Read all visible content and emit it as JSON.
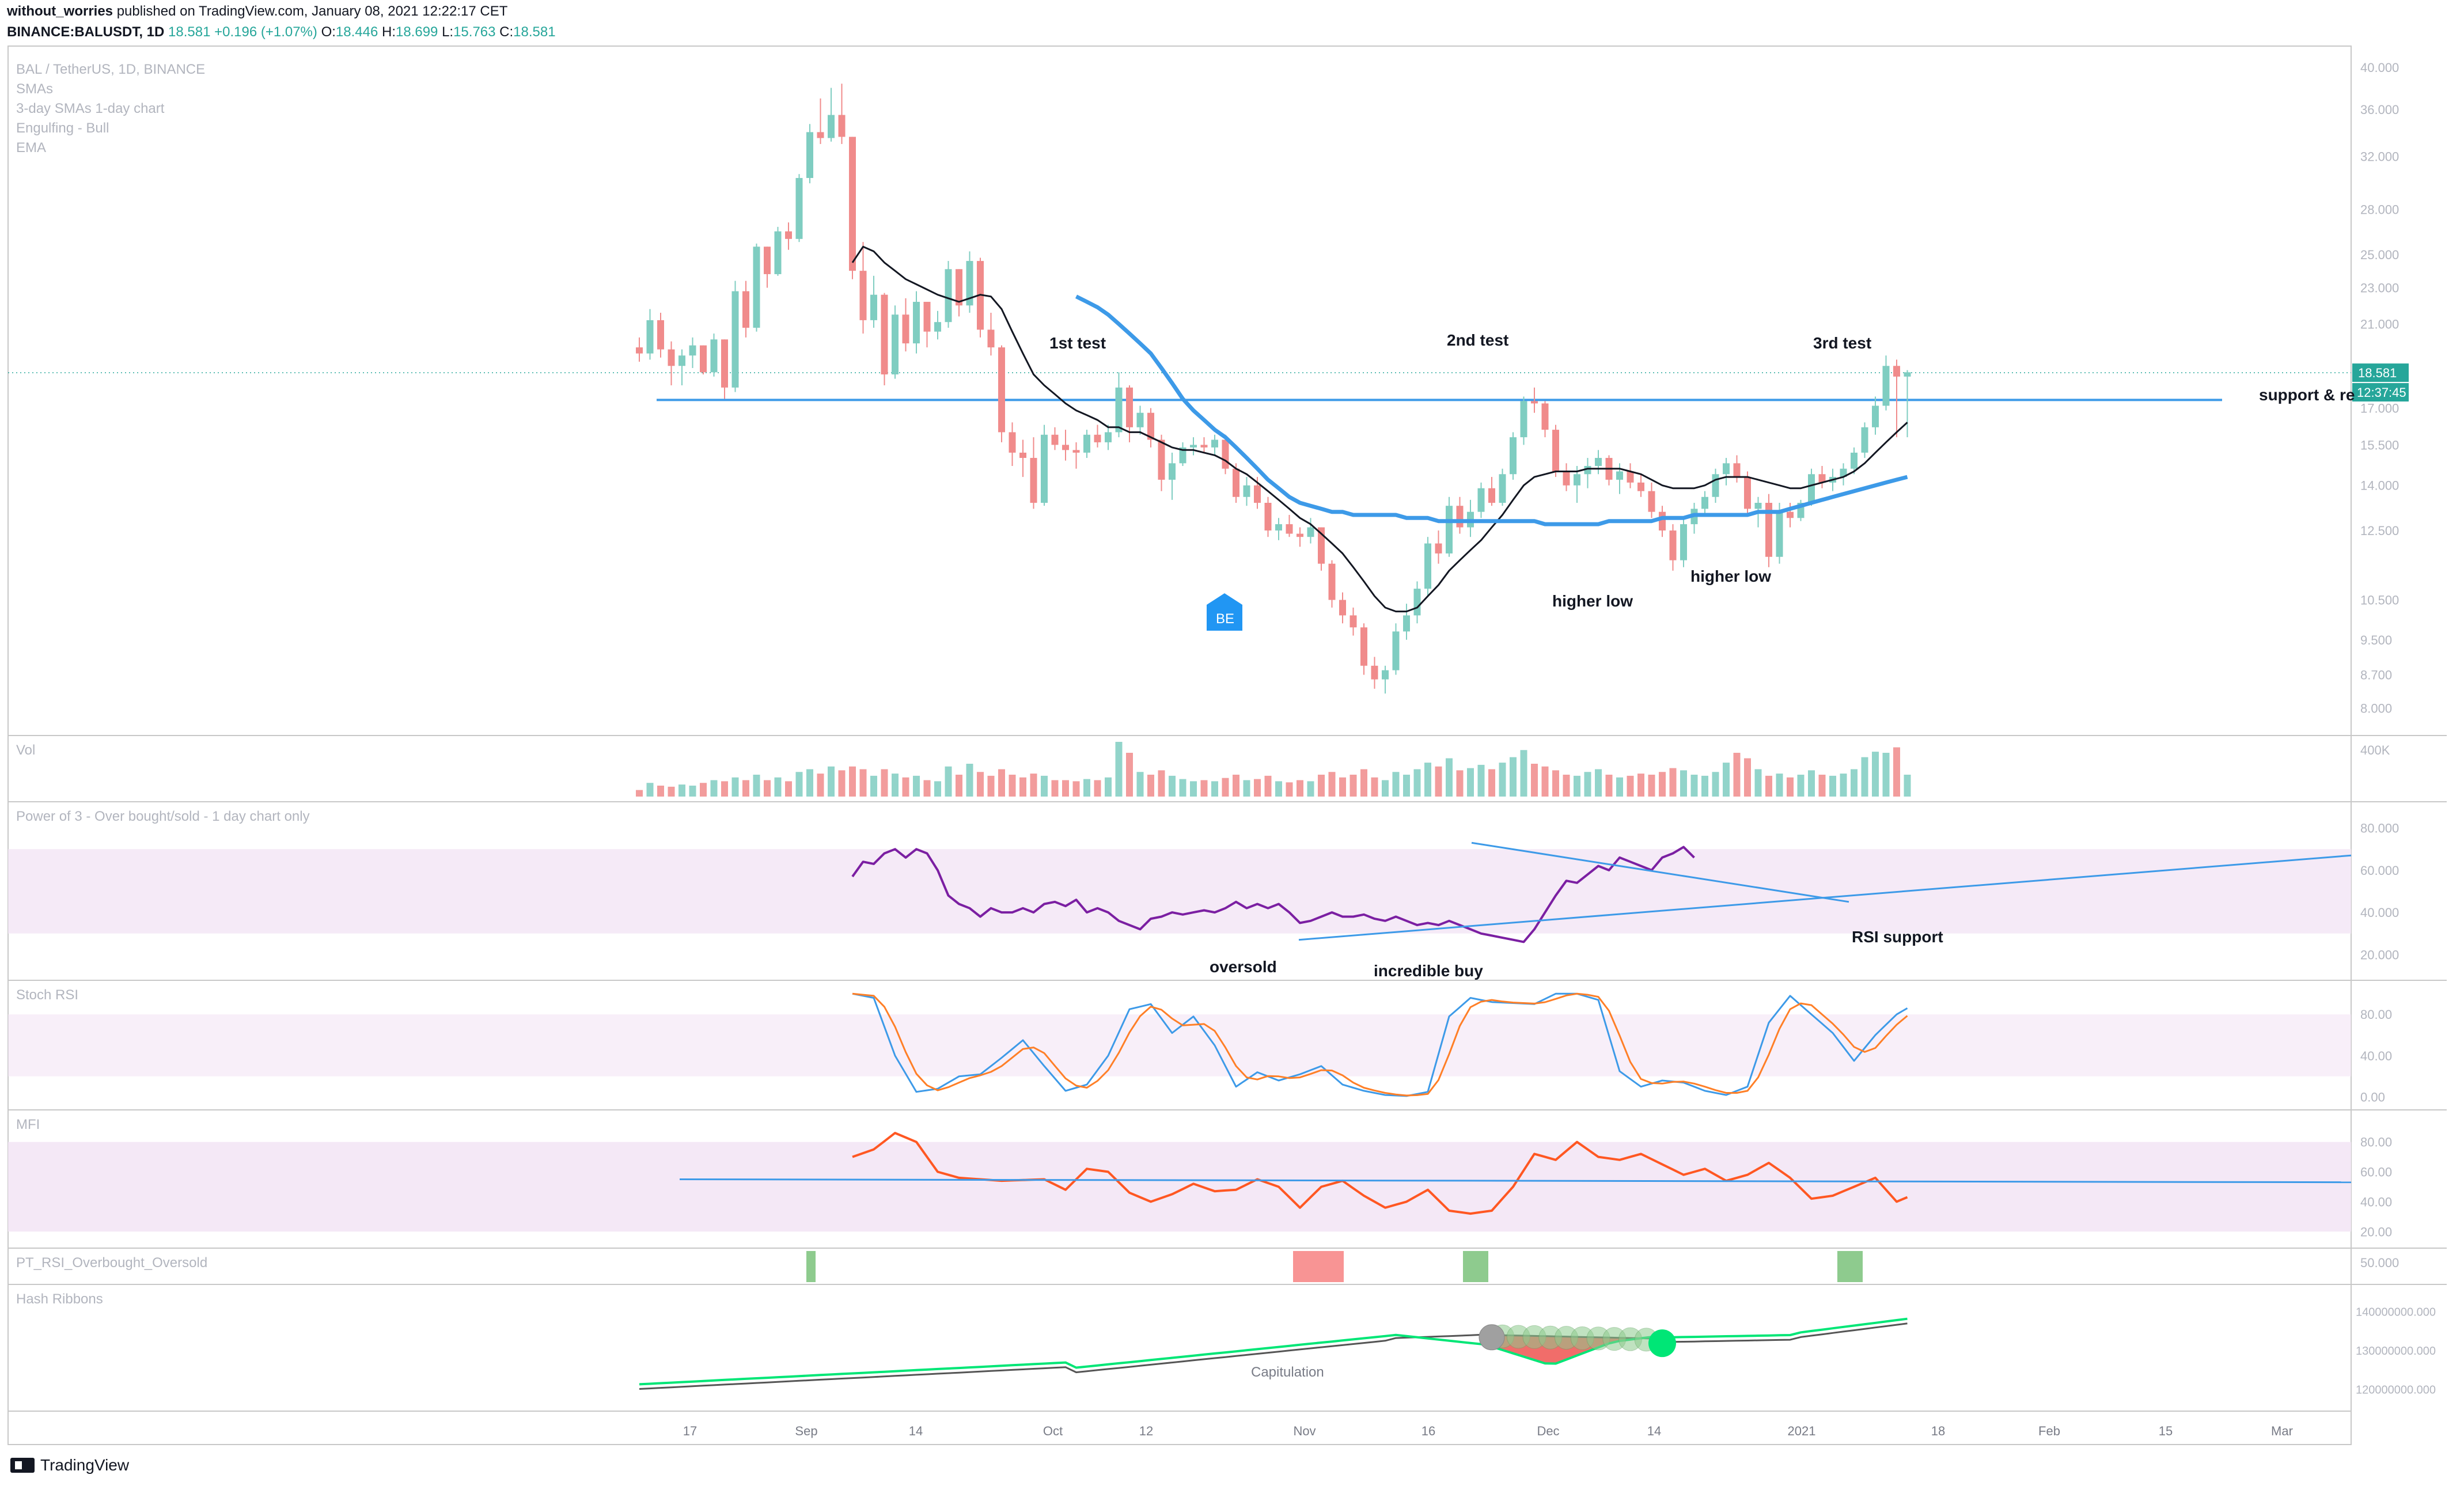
{
  "header": {
    "publisher": "without_worries",
    "published_text": "published on TradingView.com, January 08, 2021 12:22:17 CET",
    "symbol": "BINANCE:BALUSDT, 1D",
    "last": "18.581",
    "change": "+0.196 (+1.07%)",
    "o_label": "O:",
    "o": "18.446",
    "h_label": "H:",
    "h": "18.699",
    "l_label": "L:",
    "l": "15.763",
    "c_label": "C:",
    "c": "18.581"
  },
  "legend": [
    "BAL / TetherUS, 1D, BINANCE",
    "SMAs",
    "3-day SMAs 1-day chart",
    "Engulfing - Bull",
    "EMA"
  ],
  "colors": {
    "up": "#7fcdc1",
    "down": "#f08b8b",
    "ema": "#3d9ae8",
    "sma": "#131722",
    "rsi": "#7b1fa2",
    "stoch_k": "#3d9ae8",
    "stoch_d": "#ff7f27",
    "mfi": "#ff5722",
    "ribbon_fast": "#00e676",
    "ribbon_slow": "#555555",
    "band": "#f3e5f5"
  },
  "annotations": {
    "test1": "1st test",
    "test2": "2nd test",
    "test3": "3rd test",
    "support": "support & re",
    "higher_low_1": "higher low",
    "higher_low_2": "higher low",
    "oversold": "oversold",
    "incredible_buy": "incredible buy",
    "rsi_support": "RSI support",
    "capitulation": "Capitulation",
    "be_badge": "BE"
  },
  "price_badges": {
    "last": "18.581",
    "countdown": "12:37:45"
  },
  "pane_titles": {
    "vol": "Vol",
    "power3": "Power of 3 - Over bought/sold - 1 day chart only",
    "stoch": "Stoch RSI",
    "mfi": "MFI",
    "ptrsi": "PT_RSI_Overbought_Oversold",
    "hash": "Hash Ribbons"
  },
  "axes": {
    "price_ticks": [
      "40.000",
      "36.000",
      "32.000",
      "28.000",
      "25.000",
      "23.000",
      "21.000",
      "17.000",
      "15.500",
      "14.000",
      "12.500",
      "10.500",
      "9.500",
      "8.700",
      "8.000"
    ],
    "vol_ticks": [
      "400K"
    ],
    "power3_ticks": [
      "80.000",
      "60.000",
      "40.000",
      "20.000"
    ],
    "stoch_ticks": [
      "80.00",
      "40.00",
      "0.00"
    ],
    "mfi_ticks": [
      "80.00",
      "60.00",
      "40.00",
      "20.00"
    ],
    "ptrsi_ticks": [
      "50.000"
    ],
    "hash_ticks": [
      "140000000.000",
      "130000000.000",
      "120000000.000"
    ],
    "x_ticks": [
      "17",
      "Sep",
      "14",
      "Oct",
      "12",
      "Nov",
      "16",
      "Dec",
      "14",
      "2021",
      "18",
      "Feb",
      "15",
      "Mar"
    ]
  },
  "footer": {
    "brand": "TradingView"
  },
  "chart_data": {
    "type": "candlestick",
    "price_scale": "log",
    "ylim": [
      7.6,
      41
    ],
    "x_start": "2020-08-10",
    "candles": [
      [
        19.8,
        20.3,
        19.1,
        19.5
      ],
      [
        19.5,
        21.8,
        19.2,
        21.2
      ],
      [
        21.2,
        21.6,
        19.3,
        19.7
      ],
      [
        19.7,
        20.1,
        18.0,
        18.9
      ],
      [
        18.9,
        19.7,
        18.0,
        19.4
      ],
      [
        19.4,
        20.3,
        18.8,
        19.9
      ],
      [
        19.9,
        19.9,
        18.5,
        18.6
      ],
      [
        18.6,
        20.5,
        18.4,
        20.2
      ],
      [
        20.2,
        20.2,
        17.4,
        17.9
      ],
      [
        17.9,
        23.4,
        17.7,
        22.8
      ],
      [
        22.8,
        23.4,
        20.3,
        20.8
      ],
      [
        20.8,
        25.7,
        20.6,
        25.5
      ],
      [
        25.5,
        25.5,
        23.0,
        23.8
      ],
      [
        23.8,
        26.8,
        23.7,
        26.5
      ],
      [
        26.5,
        27.1,
        25.3,
        26.0
      ],
      [
        26.0,
        30.6,
        25.8,
        30.3
      ],
      [
        30.3,
        34.7,
        29.9,
        34.0
      ],
      [
        34.0,
        37.0,
        33.0,
        33.5
      ],
      [
        33.5,
        38.0,
        33.2,
        35.5
      ],
      [
        35.5,
        38.4,
        33.0,
        33.6
      ],
      [
        33.6,
        33.6,
        23.5,
        24.0
      ],
      [
        24.0,
        25.8,
        20.5,
        21.2
      ],
      [
        21.2,
        23.7,
        20.8,
        22.6
      ],
      [
        22.6,
        22.7,
        18.0,
        18.5
      ],
      [
        18.5,
        22.0,
        18.3,
        21.5
      ],
      [
        21.5,
        22.4,
        19.6,
        20.0
      ],
      [
        20.0,
        22.8,
        19.5,
        22.2
      ],
      [
        22.2,
        22.2,
        19.8,
        20.6
      ],
      [
        20.6,
        21.7,
        20.2,
        21.1
      ],
      [
        21.1,
        24.6,
        20.8,
        24.1
      ],
      [
        24.1,
        24.1,
        21.4,
        22.0
      ],
      [
        22.0,
        25.2,
        21.6,
        24.6
      ],
      [
        24.6,
        24.8,
        20.3,
        20.7
      ],
      [
        20.7,
        21.6,
        19.4,
        19.8
      ],
      [
        19.8,
        19.9,
        15.6,
        16.0
      ],
      [
        16.0,
        16.4,
        14.7,
        15.2
      ],
      [
        15.2,
        15.7,
        14.3,
        15.0
      ],
      [
        15.0,
        15.8,
        13.2,
        13.4
      ],
      [
        13.4,
        16.3,
        13.3,
        15.9
      ],
      [
        15.9,
        16.2,
        15.3,
        15.5
      ],
      [
        15.5,
        16.1,
        14.9,
        15.3
      ],
      [
        15.3,
        15.6,
        14.6,
        15.2
      ],
      [
        15.2,
        16.1,
        15.0,
        15.9
      ],
      [
        15.9,
        16.3,
        15.4,
        15.6
      ],
      [
        15.6,
        16.3,
        15.3,
        16.0
      ],
      [
        16.0,
        18.6,
        15.8,
        17.9
      ],
      [
        17.9,
        18.0,
        15.6,
        16.2
      ],
      [
        16.2,
        17.1,
        15.9,
        16.8
      ],
      [
        16.8,
        17.0,
        15.4,
        15.7
      ],
      [
        15.7,
        15.9,
        13.8,
        14.2
      ],
      [
        14.2,
        15.2,
        13.5,
        14.8
      ],
      [
        14.8,
        15.6,
        14.7,
        15.4
      ],
      [
        15.4,
        15.8,
        15.1,
        15.5
      ],
      [
        15.5,
        15.8,
        15.2,
        15.4
      ],
      [
        15.4,
        15.9,
        15.1,
        15.7
      ],
      [
        15.7,
        15.9,
        14.4,
        14.6
      ],
      [
        14.6,
        14.8,
        13.4,
        13.6
      ],
      [
        13.6,
        14.3,
        13.3,
        14.0
      ],
      [
        14.0,
        14.3,
        13.2,
        13.4
      ],
      [
        13.4,
        13.6,
        12.3,
        12.5
      ],
      [
        12.5,
        12.9,
        12.2,
        12.7
      ],
      [
        12.7,
        13.0,
        12.3,
        12.4
      ],
      [
        12.4,
        12.6,
        12.0,
        12.3
      ],
      [
        12.3,
        12.9,
        12.1,
        12.6
      ],
      [
        12.6,
        12.6,
        11.3,
        11.5
      ],
      [
        11.5,
        11.6,
        10.3,
        10.5
      ],
      [
        10.5,
        10.7,
        9.9,
        10.1
      ],
      [
        10.1,
        10.3,
        9.6,
        9.8
      ],
      [
        9.8,
        9.9,
        8.7,
        8.9
      ],
      [
        8.9,
        9.1,
        8.4,
        8.6
      ],
      [
        8.6,
        8.9,
        8.3,
        8.8
      ],
      [
        8.8,
        9.9,
        8.7,
        9.7
      ],
      [
        9.7,
        10.4,
        9.5,
        10.1
      ],
      [
        10.1,
        11.0,
        9.9,
        10.8
      ],
      [
        10.8,
        12.3,
        10.6,
        12.1
      ],
      [
        12.1,
        12.5,
        11.5,
        11.8
      ],
      [
        11.8,
        13.6,
        11.7,
        13.3
      ],
      [
        13.3,
        13.6,
        12.4,
        12.6
      ],
      [
        12.6,
        13.5,
        12.3,
        13.1
      ],
      [
        13.1,
        14.1,
        12.9,
        13.9
      ],
      [
        13.9,
        14.3,
        13.3,
        13.4
      ],
      [
        13.4,
        14.6,
        13.3,
        14.4
      ],
      [
        14.4,
        16.0,
        14.2,
        15.8
      ],
      [
        15.8,
        17.5,
        15.5,
        17.3
      ],
      [
        17.3,
        17.9,
        16.8,
        17.2
      ],
      [
        17.2,
        17.3,
        15.8,
        16.1
      ],
      [
        16.1,
        16.3,
        14.3,
        14.5
      ],
      [
        14.5,
        14.8,
        13.8,
        14.0
      ],
      [
        14.0,
        14.7,
        13.4,
        14.4
      ],
      [
        14.4,
        15.0,
        13.9,
        14.7
      ],
      [
        14.7,
        15.3,
        14.4,
        15.0
      ],
      [
        15.0,
        15.1,
        14.0,
        14.2
      ],
      [
        14.2,
        14.8,
        13.7,
        14.5
      ],
      [
        14.5,
        14.8,
        13.9,
        14.1
      ],
      [
        14.1,
        14.4,
        13.6,
        13.8
      ],
      [
        13.8,
        14.1,
        12.9,
        13.1
      ],
      [
        13.1,
        13.3,
        12.3,
        12.5
      ],
      [
        12.5,
        12.7,
        11.3,
        11.6
      ],
      [
        11.6,
        12.9,
        11.4,
        12.7
      ],
      [
        12.7,
        13.4,
        12.4,
        13.2
      ],
      [
        13.2,
        13.8,
        13.0,
        13.6
      ],
      [
        13.6,
        14.6,
        13.4,
        14.4
      ],
      [
        14.4,
        15.0,
        14.0,
        14.8
      ],
      [
        14.8,
        15.1,
        14.1,
        14.3
      ],
      [
        14.3,
        14.5,
        13.0,
        13.2
      ],
      [
        13.2,
        13.6,
        12.6,
        13.4
      ],
      [
        13.4,
        13.7,
        11.4,
        11.7
      ],
      [
        11.7,
        13.4,
        11.5,
        13.1
      ],
      [
        13.1,
        13.4,
        12.6,
        12.9
      ],
      [
        12.9,
        13.5,
        12.8,
        13.4
      ],
      [
        13.4,
        14.6,
        13.3,
        14.4
      ],
      [
        14.4,
        14.7,
        13.9,
        14.1
      ],
      [
        14.1,
        14.6,
        13.8,
        14.3
      ],
      [
        14.3,
        14.8,
        14.0,
        14.6
      ],
      [
        14.6,
        15.4,
        14.4,
        15.2
      ],
      [
        15.2,
        16.4,
        15.0,
        16.2
      ],
      [
        16.2,
        17.5,
        15.9,
        17.1
      ],
      [
        17.1,
        19.4,
        16.9,
        18.9
      ],
      [
        18.9,
        19.2,
        15.8,
        18.4
      ],
      [
        18.4,
        18.7,
        15.8,
        18.6
      ]
    ],
    "sma": [
      null,
      null,
      null,
      null,
      null,
      null,
      null,
      null,
      null,
      null,
      null,
      null,
      null,
      null,
      null,
      null,
      null,
      null,
      null,
      null,
      24.5,
      25.5,
      25.2,
      24.5,
      24.0,
      23.5,
      23.2,
      22.9,
      22.6,
      22.4,
      22.2,
      22.4,
      22.6,
      22.5,
      21.8,
      20.6,
      19.5,
      18.5,
      18.0,
      17.6,
      17.2,
      16.9,
      16.7,
      16.5,
      16.2,
      16.2,
      16.0,
      16.0,
      15.8,
      15.6,
      15.4,
      15.3,
      15.3,
      15.2,
      15.1,
      14.9,
      14.6,
      14.4,
      14.1,
      13.8,
      13.5,
      13.2,
      12.9,
      12.7,
      12.4,
      12.1,
      11.8,
      11.4,
      11.0,
      10.6,
      10.3,
      10.2,
      10.2,
      10.3,
      10.6,
      10.9,
      11.3,
      11.6,
      11.9,
      12.2,
      12.6,
      13.0,
      13.5,
      14.0,
      14.3,
      14.4,
      14.5,
      14.5,
      14.5,
      14.6,
      14.6,
      14.6,
      14.6,
      14.5,
      14.4,
      14.2,
      14.0,
      13.9,
      13.9,
      13.9,
      14.0,
      14.2,
      14.3,
      14.3,
      14.3,
      14.2,
      14.1,
      14.0,
      13.9,
      13.9,
      14.0,
      14.1,
      14.2,
      14.3,
      14.5,
      14.8,
      15.2,
      15.6,
      16.0,
      16.4
    ],
    "ema": [
      null,
      null,
      null,
      null,
      null,
      null,
      null,
      null,
      null,
      null,
      null,
      null,
      null,
      null,
      null,
      null,
      null,
      null,
      null,
      null,
      null,
      null,
      null,
      null,
      null,
      null,
      null,
      null,
      null,
      null,
      null,
      null,
      null,
      null,
      null,
      null,
      null,
      null,
      null,
      null,
      null,
      22.5,
      22.2,
      21.9,
      21.5,
      21.0,
      20.5,
      20.0,
      19.5,
      18.8,
      18.1,
      17.4,
      16.9,
      16.5,
      16.1,
      15.8,
      15.4,
      15.0,
      14.6,
      14.2,
      13.9,
      13.6,
      13.4,
      13.3,
      13.2,
      13.1,
      13.1,
      13.0,
      13.0,
      13.0,
      13.0,
      13.0,
      12.9,
      12.9,
      12.9,
      12.8,
      12.8,
      12.8,
      12.8,
      12.8,
      12.8,
      12.8,
      12.8,
      12.8,
      12.8,
      12.7,
      12.7,
      12.7,
      12.7,
      12.7,
      12.7,
      12.8,
      12.8,
      12.8,
      12.8,
      12.8,
      12.9,
      12.9,
      12.9,
      13.0,
      13.0,
      13.0,
      13.0,
      13.0,
      13.0,
      13.1,
      13.1,
      13.1,
      13.2,
      13.3,
      13.4,
      13.5,
      13.6,
      13.7,
      13.8,
      13.9,
      14.0,
      14.1,
      14.2,
      14.3
    ],
    "resistance_level": 17.35,
    "volume_rel": [
      0.12,
      0.25,
      0.2,
      0.18,
      0.22,
      0.2,
      0.25,
      0.3,
      0.28,
      0.35,
      0.3,
      0.4,
      0.3,
      0.35,
      0.28,
      0.45,
      0.5,
      0.42,
      0.55,
      0.48,
      0.55,
      0.5,
      0.38,
      0.5,
      0.42,
      0.35,
      0.38,
      0.3,
      0.28,
      0.55,
      0.4,
      0.6,
      0.45,
      0.38,
      0.5,
      0.4,
      0.35,
      0.42,
      0.38,
      0.3,
      0.3,
      0.28,
      0.32,
      0.3,
      0.35,
      1.0,
      0.8,
      0.45,
      0.4,
      0.48,
      0.38,
      0.32,
      0.28,
      0.3,
      0.28,
      0.34,
      0.4,
      0.3,
      0.32,
      0.38,
      0.28,
      0.26,
      0.3,
      0.28,
      0.4,
      0.45,
      0.35,
      0.4,
      0.5,
      0.35,
      0.3,
      0.45,
      0.4,
      0.5,
      0.62,
      0.55,
      0.7,
      0.48,
      0.52,
      0.58,
      0.5,
      0.62,
      0.72,
      0.85,
      0.6,
      0.55,
      0.48,
      0.4,
      0.38,
      0.45,
      0.5,
      0.4,
      0.35,
      0.38,
      0.42,
      0.4,
      0.45,
      0.52,
      0.48,
      0.4,
      0.38,
      0.45,
      0.62,
      0.8,
      0.7,
      0.5,
      0.38,
      0.42,
      0.35,
      0.4,
      0.48,
      0.4,
      0.38,
      0.42,
      0.5,
      0.72,
      0.82,
      0.8,
      0.9,
      0.4
    ],
    "power3": [
      null,
      null,
      null,
      null,
      null,
      null,
      null,
      null,
      null,
      null,
      null,
      null,
      null,
      null,
      null,
      null,
      null,
      null,
      null,
      null,
      57,
      64,
      63,
      68,
      70,
      66,
      70,
      68,
      60,
      48,
      44,
      42,
      38,
      42,
      40,
      40,
      42,
      40,
      44,
      45,
      43,
      46,
      40,
      42,
      40,
      36,
      34,
      32,
      37,
      38,
      40,
      39,
      40,
      41,
      40,
      42,
      45,
      42,
      44,
      42,
      44,
      40,
      35,
      36,
      38,
      40,
      38,
      38,
      39,
      37,
      36,
      38,
      36,
      34,
      35,
      34,
      36,
      34,
      32,
      30,
      29,
      28,
      27,
      26,
      32,
      40,
      48,
      55,
      54,
      58,
      62,
      60,
      66,
      64,
      62,
      60,
      66,
      68,
      71,
      66
    ],
    "stoch_k": [],
    "stoch_d": [],
    "mfi": [],
    "hash_fast": [],
    "hash_slow": []
  }
}
